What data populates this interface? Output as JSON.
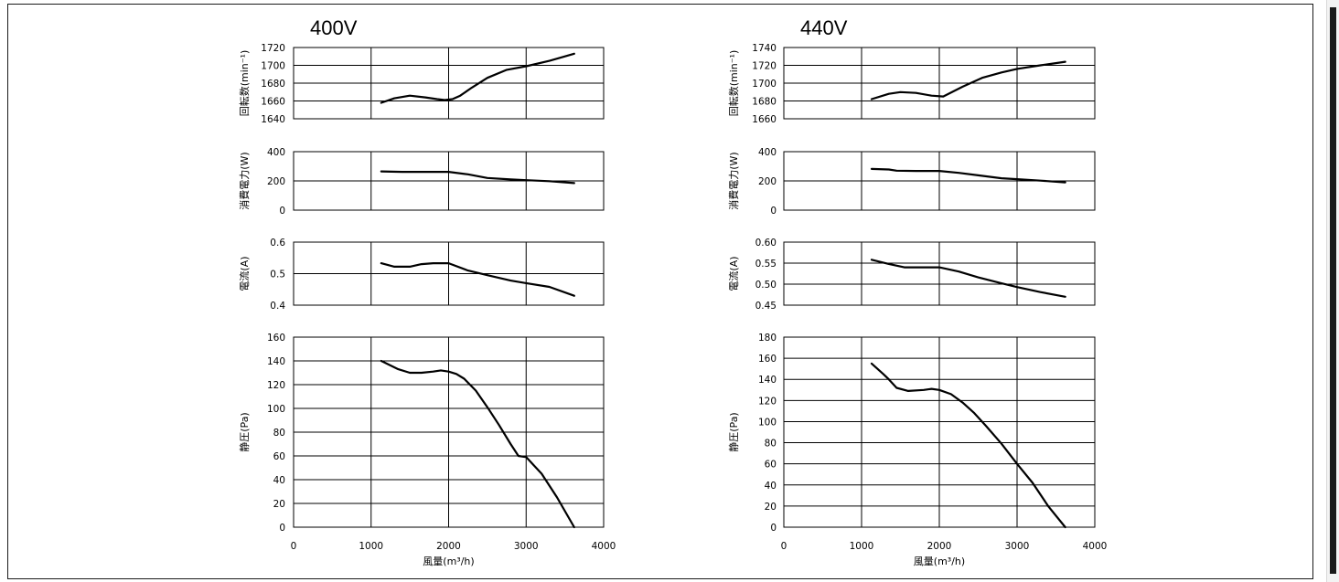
{
  "chart_data": [
    {
      "type": "line",
      "title": "400V",
      "xlabel": "風量(m³/h)",
      "xlim": [
        0,
        4000
      ],
      "xticks": [
        "0",
        "1000",
        "2000",
        "3000",
        "4000"
      ],
      "panels": [
        {
          "name": "speed",
          "ylabel": "回転数(min⁻¹)",
          "ylim": [
            1640,
            1720
          ],
          "yticks": [
            "1640",
            "1660",
            "1680",
            "1700",
            "1720"
          ],
          "x": [
            1130,
            1300,
            1500,
            1700,
            1850,
            1950,
            2050,
            2150,
            2300,
            2500,
            2750,
            3000,
            3300,
            3620
          ],
          "y": [
            1658,
            1663,
            1666,
            1664,
            1662,
            1661,
            1662,
            1666,
            1675,
            1686,
            1695,
            1699,
            1705,
            1713
          ]
        },
        {
          "name": "power",
          "ylabel": "消費電力(W)",
          "ylim": [
            0,
            400
          ],
          "yticks": [
            "0",
            "200",
            "400"
          ],
          "x": [
            1130,
            1400,
            1700,
            2000,
            2250,
            2500,
            2800,
            3000,
            3300,
            3620
          ],
          "y": [
            265,
            262,
            262,
            262,
            245,
            220,
            210,
            205,
            198,
            185
          ]
        },
        {
          "name": "current",
          "ylabel": "電流(A)",
          "ylim": [
            0.4,
            0.6
          ],
          "yticks": [
            "0.4",
            "0.5",
            "0.6"
          ],
          "x": [
            1130,
            1300,
            1500,
            1650,
            1800,
            2000,
            2250,
            2500,
            2800,
            3000,
            3300,
            3620
          ],
          "y": [
            0.533,
            0.522,
            0.522,
            0.53,
            0.533,
            0.533,
            0.51,
            0.495,
            0.478,
            0.47,
            0.458,
            0.43
          ]
        },
        {
          "name": "static-pressure",
          "ylabel": "静圧(Pa)",
          "ylim": [
            0,
            160
          ],
          "yticks": [
            "0",
            "20",
            "40",
            "60",
            "80",
            "100",
            "120",
            "140",
            "160"
          ],
          "x": [
            1130,
            1350,
            1500,
            1650,
            1800,
            1900,
            2000,
            2100,
            2200,
            2350,
            2500,
            2650,
            2800,
            2900,
            3000,
            3200,
            3400,
            3620
          ],
          "y": [
            140,
            133,
            130,
            130,
            131,
            132,
            131,
            129,
            125,
            115,
            101,
            86,
            70,
            60,
            59,
            45,
            25,
            0
          ]
        }
      ]
    },
    {
      "type": "line",
      "title": "440V",
      "xlabel": "風量(m³/h)",
      "xlim": [
        0,
        4000
      ],
      "xticks": [
        "0",
        "1000",
        "2000",
        "3000",
        "4000"
      ],
      "panels": [
        {
          "name": "speed",
          "ylabel": "回転数(min⁻¹)",
          "ylim": [
            1660,
            1740
          ],
          "yticks": [
            "1660",
            "1680",
            "1700",
            "1720",
            "1740"
          ],
          "x": [
            1130,
            1350,
            1500,
            1700,
            1900,
            2050,
            2300,
            2550,
            2800,
            3000,
            3300,
            3620
          ],
          "y": [
            1682,
            1688,
            1690,
            1689,
            1686,
            1685,
            1696,
            1706,
            1712,
            1716,
            1720,
            1724
          ]
        },
        {
          "name": "power",
          "ylabel": "消費電力(W)",
          "ylim": [
            0,
            400
          ],
          "yticks": [
            "0",
            "200",
            "400"
          ],
          "x": [
            1130,
            1350,
            1450,
            1700,
            2000,
            2250,
            2500,
            2800,
            3000,
            3300,
            3620
          ],
          "y": [
            282,
            278,
            270,
            268,
            268,
            255,
            238,
            218,
            212,
            202,
            190
          ]
        },
        {
          "name": "current",
          "ylabel": "電流(A)",
          "ylim": [
            0.45,
            0.6
          ],
          "yticks": [
            "0.45",
            "0.50",
            "0.55",
            "0.60"
          ],
          "x": [
            1130,
            1350,
            1550,
            1800,
            2000,
            2250,
            2500,
            2800,
            3000,
            3300,
            3620
          ],
          "y": [
            0.558,
            0.548,
            0.54,
            0.54,
            0.54,
            0.53,
            0.516,
            0.502,
            0.493,
            0.481,
            0.47
          ]
        },
        {
          "name": "static-pressure",
          "ylabel": "静圧(Pa)",
          "ylim": [
            0,
            180
          ],
          "yticks": [
            "0",
            "20",
            "40",
            "60",
            "80",
            "100",
            "120",
            "140",
            "160",
            "180"
          ],
          "x": [
            1130,
            1280,
            1350,
            1450,
            1600,
            1800,
            1900,
            2000,
            2150,
            2300,
            2450,
            2600,
            2800,
            3000,
            3200,
            3400,
            3620
          ],
          "y": [
            155,
            145,
            140,
            132,
            129,
            130,
            131,
            130,
            126,
            118,
            108,
            96,
            79,
            60,
            42,
            20,
            0
          ]
        }
      ]
    }
  ]
}
